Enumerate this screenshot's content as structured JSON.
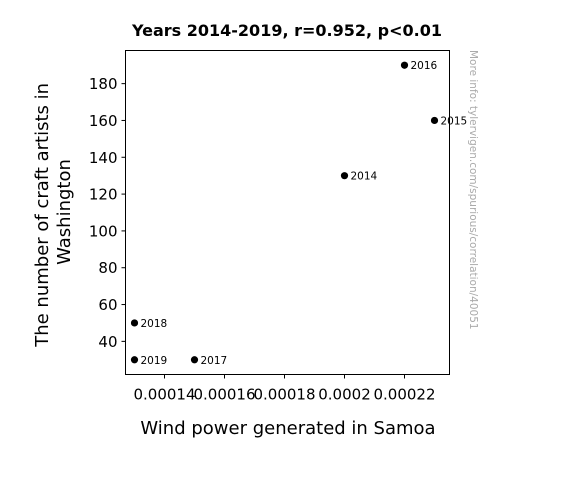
{
  "chart_data": {
    "type": "scatter",
    "title": "Years 2014-2019, r=0.952, p<0.01",
    "xlabel": "Wind power generated in Samoa",
    "ylabel_lines": [
      "The number of craft artists in",
      "Washington"
    ],
    "xlim": [
      0.000127,
      0.000235
    ],
    "ylim": [
      22,
      198
    ],
    "xticks": [
      {
        "value": 0.00014,
        "label": "0.00014"
      },
      {
        "value": 0.00016,
        "label": "0.00016"
      },
      {
        "value": 0.00018,
        "label": "0.00018"
      },
      {
        "value": 0.0002,
        "label": "0.0002"
      },
      {
        "value": 0.00022,
        "label": "0.00022"
      }
    ],
    "yticks": [
      {
        "value": 40,
        "label": "40"
      },
      {
        "value": 60,
        "label": "60"
      },
      {
        "value": 80,
        "label": "80"
      },
      {
        "value": 100,
        "label": "100"
      },
      {
        "value": 120,
        "label": "120"
      },
      {
        "value": 140,
        "label": "140"
      },
      {
        "value": 160,
        "label": "160"
      },
      {
        "value": 180,
        "label": "180"
      }
    ],
    "points": [
      {
        "label": "2014",
        "x": 0.0002,
        "y": 130
      },
      {
        "label": "2015",
        "x": 0.00023,
        "y": 160
      },
      {
        "label": "2016",
        "x": 0.00022,
        "y": 190
      },
      {
        "label": "2017",
        "x": 0.00015,
        "y": 30
      },
      {
        "label": "2018",
        "x": 0.00013,
        "y": 50
      },
      {
        "label": "2019",
        "x": 0.00013,
        "y": 30
      }
    ],
    "grid": false,
    "marker_color": "#000000"
  },
  "watermark": "More info: tylervigen.com/spurious/correlation/40051"
}
